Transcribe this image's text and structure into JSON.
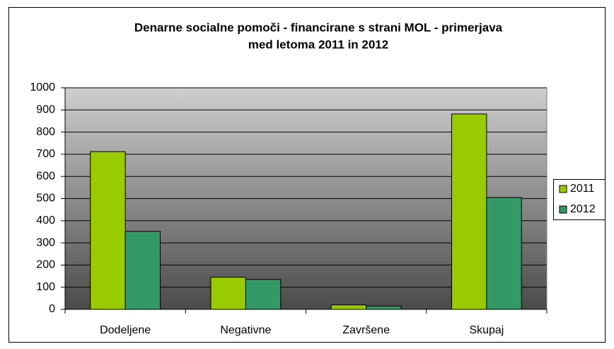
{
  "chart_data": {
    "type": "bar",
    "title": [
      "Denarne socialne pomoči - financirane s strani MOL - primerjava",
      "med letoma 2011 in 2012"
    ],
    "categories": [
      "Dodeljene",
      "Negativne",
      "Završene",
      "Skupaj"
    ],
    "series": [
      {
        "name": "2011",
        "color": "#99cc00",
        "values": [
          712,
          145,
          20,
          882
        ]
      },
      {
        "name": "2012",
        "color": "#339966",
        "values": [
          352,
          135,
          15,
          505
        ]
      }
    ],
    "ylim": [
      0,
      1000
    ],
    "yticks": [
      0,
      100,
      200,
      300,
      400,
      500,
      600,
      700,
      800,
      900,
      1000
    ],
    "grid": true,
    "legend": "right"
  }
}
